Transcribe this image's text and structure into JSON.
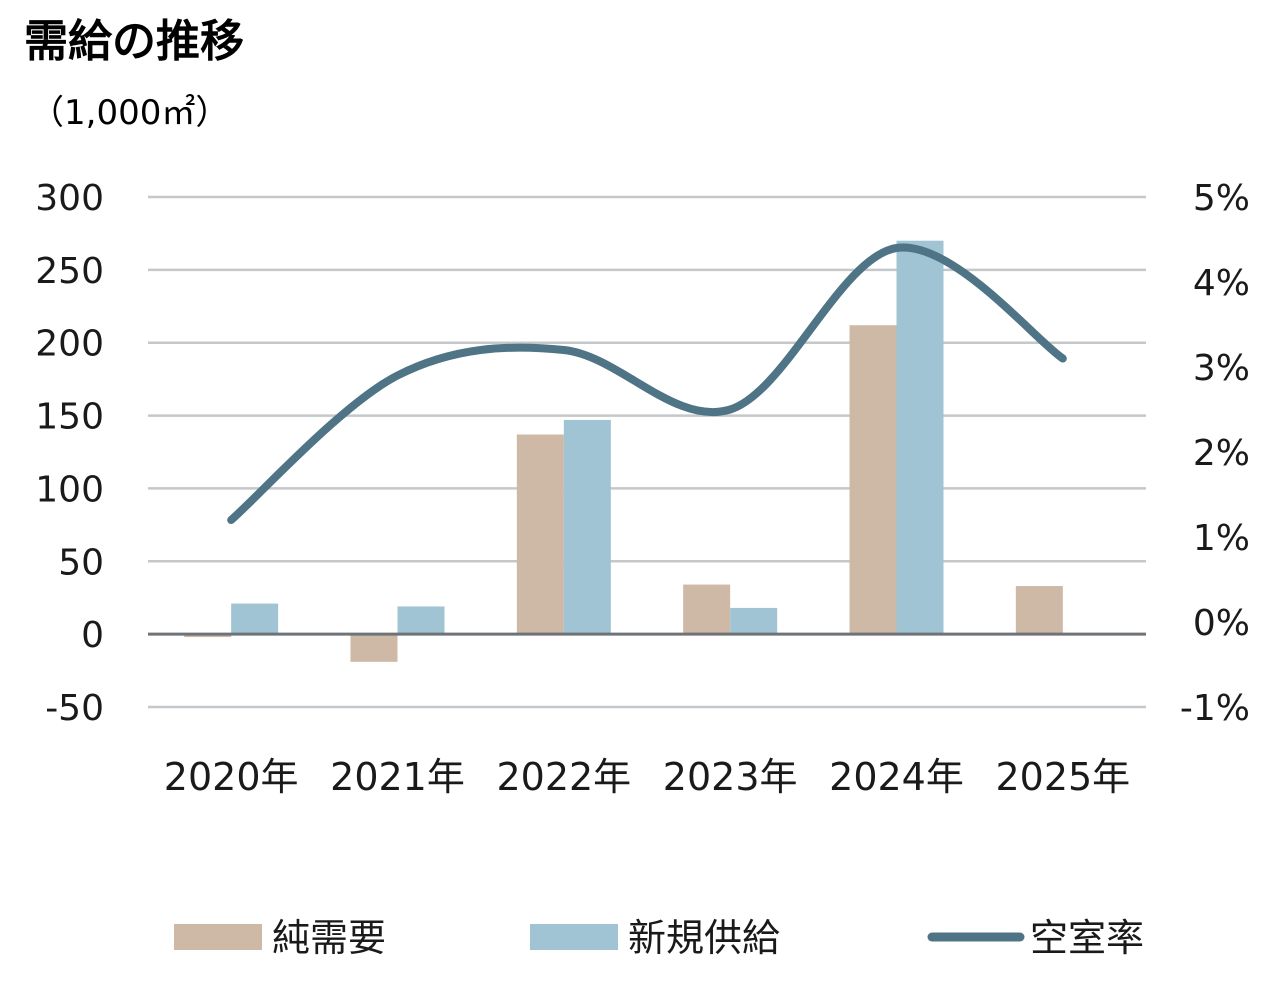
{
  "chart_data": {
    "type": "bar",
    "title": "需給の推移",
    "ylabel": "（1,000㎡）",
    "categories": [
      "2020年",
      "2021年",
      "2022年",
      "2023年",
      "2024年",
      "2025年"
    ],
    "ylim": [
      -50,
      300
    ],
    "yticks": [
      "300",
      "250",
      "200",
      "150",
      "100",
      "50",
      "0",
      "-50"
    ],
    "ytick_values": [
      300,
      250,
      200,
      150,
      100,
      50,
      0,
      -50
    ],
    "y2lim": [
      -1,
      5
    ],
    "y2ticks": [
      "5%",
      "4%",
      "3%",
      "2%",
      "1%",
      "0%",
      "-1%"
    ],
    "y2tick_values": [
      5,
      4,
      3,
      2,
      1,
      0,
      -1
    ],
    "series": [
      {
        "name": "純需要",
        "type": "bar",
        "axis": "left",
        "color": "#cdb9a5",
        "values": [
          -2,
          -19,
          137,
          34,
          212,
          33
        ]
      },
      {
        "name": "新規供給",
        "type": "bar",
        "axis": "left",
        "color": "#a0c4d3",
        "values": [
          21,
          19,
          147,
          18,
          270,
          null
        ]
      },
      {
        "name": "空室率",
        "type": "line",
        "axis": "right",
        "color": "#4e7486",
        "values": [
          1.2,
          2.9,
          3.2,
          2.5,
          4.4,
          3.1
        ]
      }
    ],
    "grid": true,
    "legend_position": "bottom"
  }
}
